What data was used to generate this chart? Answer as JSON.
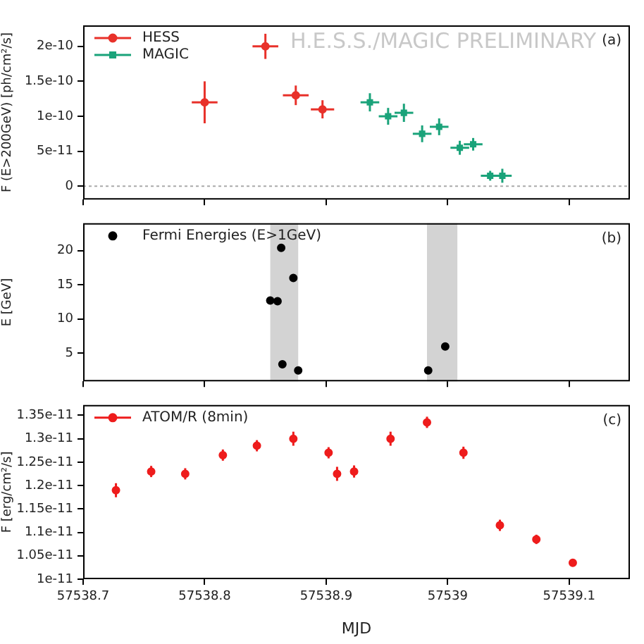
{
  "chart_data": [
    {
      "type": "scatter",
      "ylabel": "F (E>200GeV) [ph/cm²/s]",
      "xlim": [
        57538.7,
        57539.15
      ],
      "ylim": [
        -1.9e-11,
        2.3e-10
      ],
      "xticks": [
        57538.7,
        57538.8,
        57538.9,
        57539,
        57539.1
      ],
      "yticks": [
        0,
        5e-11,
        1e-10,
        1.5e-10,
        2e-10
      ],
      "tick_labels": "y",
      "grid": false,
      "legend": "top left",
      "series": [
        {
          "name": "HESS",
          "color": "#e8312a",
          "marker": "circle",
          "x": [
            57538.8,
            57538.85,
            57538.875,
            57538.897
          ],
          "values": [
            1.2e-10,
            2e-10,
            1.3e-10,
            1.1e-10
          ],
          "errors": [
            3e-11,
            1.8e-11,
            1.4e-11,
            1.3e-11
          ],
          "xerrors": [
            0.0106,
            0.0106,
            0.0106,
            0.0096
          ]
        },
        {
          "name": "MAGIC",
          "color": "#1aa37a",
          "marker": "square",
          "x": [
            57538.936,
            57538.951,
            57538.964,
            57538.979,
            57538.993,
            57539.01,
            57539.021,
            57539.035,
            57539.045
          ],
          "values": [
            1.2e-10,
            1e-10,
            1.05e-10,
            7.5e-11,
            8.5e-11,
            5.5e-11,
            6e-11,
            1.5e-11,
            1.5e-11
          ],
          "errors": [
            1.3e-11,
            1.2e-11,
            1.3e-11,
            1.2e-11,
            1.2e-11,
            1e-11,
            9e-12,
            7e-12,
            1e-11
          ],
          "xerrors": [
            0.0077,
            0.0077,
            0.0077,
            0.0077,
            0.0077,
            0.0077,
            0.0077,
            0.0077,
            0.0077
          ]
        }
      ],
      "ref_lines": [
        {
          "axis": "y",
          "value": 0,
          "color": "#aaaaaa",
          "line_style": "dotted"
        }
      ],
      "annotations": [
        "H.E.S.S./MAGIC PRELIMINARY",
        "(a)"
      ]
    },
    {
      "type": "scatter",
      "ylabel": "E [GeV]",
      "xlim": [
        57538.7,
        57539.15
      ],
      "ylim": [
        0.9,
        24
      ],
      "xticks": [
        57538.7,
        57538.8,
        57538.9,
        57539,
        57539.1
      ],
      "yticks": [
        5,
        10,
        15,
        20
      ],
      "tick_labels": "y",
      "grid": false,
      "legend": "top left",
      "marker": "circle",
      "series": [
        {
          "name": "Fermi Energies (E>1GeV)",
          "color": "#000000",
          "x": [
            57538.854,
            57538.86,
            57538.863,
            57538.864,
            57538.873,
            57538.877,
            57538.984,
            57538.998
          ],
          "values": [
            12.7,
            12.6,
            20.4,
            3.4,
            16.0,
            2.5,
            2.5,
            6.0
          ]
        }
      ],
      "bands": [
        {
          "axis": "x",
          "from": 57538.854,
          "to": 57538.877,
          "color": "#d3d3d3"
        },
        {
          "axis": "x",
          "from": 57538.983,
          "to": 57539.008,
          "color": "#d3d3d3"
        }
      ],
      "annotations": [
        "(b)"
      ]
    },
    {
      "type": "scatter",
      "xlabel": "MJD",
      "ylabel": "F [erg/cm²/s]",
      "xlim": [
        57538.7,
        57539.15
      ],
      "ylim": [
        1e-11,
        1.372e-11
      ],
      "xticks": [
        57538.7,
        57538.8,
        57538.9,
        57539,
        57539.1
      ],
      "yticks": [
        1e-11,
        1.05e-11,
        1.1e-11,
        1.15e-11,
        1.2e-11,
        1.25e-11,
        1.3e-11,
        1.35e-11
      ],
      "grid": false,
      "legend": "top left",
      "marker": "circle",
      "series": [
        {
          "name": "ATOM/R (8min)",
          "color": "#ee1c1c",
          "x": [
            57538.727,
            57538.756,
            57538.784,
            57538.815,
            57538.843,
            57538.873,
            57538.902,
            57538.909,
            57538.923,
            57538.953,
            57538.983,
            57539.013,
            57539.043,
            57539.073,
            57539.103
          ],
          "values": [
            1.19e-11,
            1.23e-11,
            1.225e-11,
            1.265e-11,
            1.285e-11,
            1.3e-11,
            1.27e-11,
            1.225e-11,
            1.23e-11,
            1.3e-11,
            1.335e-11,
            1.27e-11,
            1.115e-11,
            1.085e-11,
            1.035e-11
          ],
          "errors": [
            1.5e-13,
            1.2e-13,
            1.2e-13,
            1.2e-13,
            1.2e-13,
            1.5e-13,
            1.2e-13,
            1.5e-13,
            1.3e-13,
            1.5e-13,
            1.2e-13,
            1.3e-13,
            1.2e-13,
            1e-13,
            8e-14
          ]
        }
      ],
      "annotations": [
        "(c)"
      ]
    }
  ]
}
